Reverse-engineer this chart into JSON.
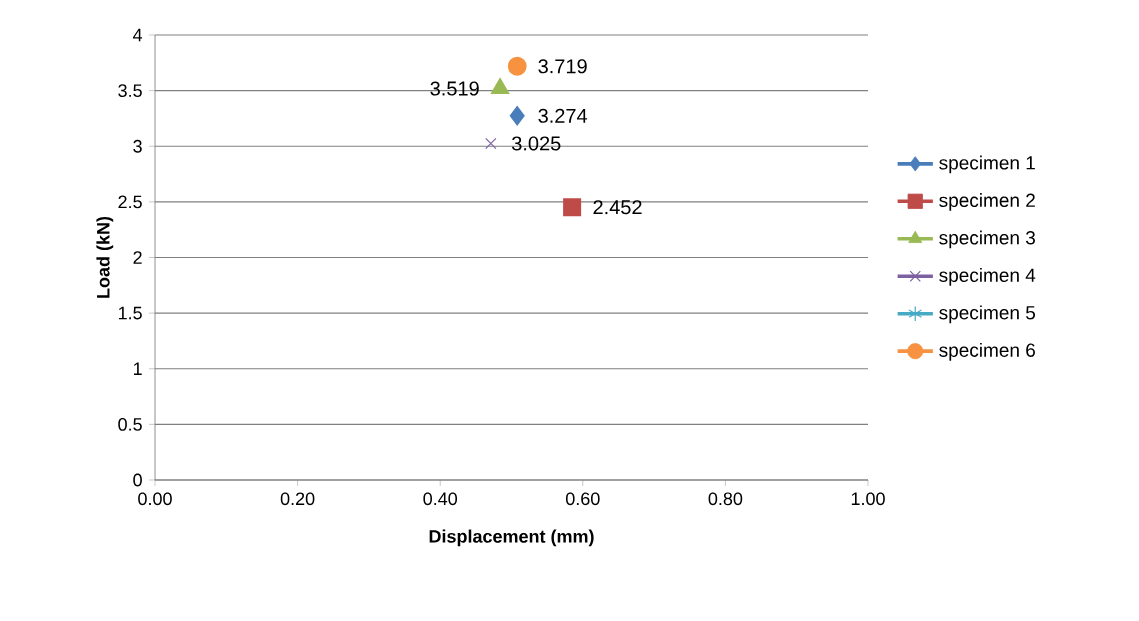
{
  "chart_data": {
    "type": "line",
    "xlabel": "Displacement (mm)",
    "ylabel": "Load (kN)",
    "series": [
      {
        "name": "specimen 1",
        "color": "#4a7ebb",
        "marker": "diamond",
        "x": [
          0.508
        ],
        "values": [
          3.274
        ]
      },
      {
        "name": "specimen 2",
        "color": "#be4b48",
        "marker": "square",
        "x": [
          0.585
        ],
        "values": [
          2.452
        ]
      },
      {
        "name": "specimen 3",
        "color": "#98b954",
        "marker": "triangle",
        "x": [
          0.484
        ],
        "values": [
          3.519
        ]
      },
      {
        "name": "specimen 4",
        "color": "#7d60a0",
        "marker": "cross",
        "x": [
          0.471
        ],
        "values": [
          3.025
        ]
      },
      {
        "name": "specimen 5",
        "color": "#46aac5",
        "marker": "star",
        "x": [
          null
        ],
        "values": [
          null
        ]
      },
      {
        "name": "specimen 6",
        "color": "#f69240",
        "marker": "circle",
        "x": [
          0.508
        ],
        "values": [
          3.719
        ]
      }
    ],
    "xlim": [
      0,
      1
    ],
    "xticks": [
      {
        "value": 0,
        "label": "0.00"
      },
      {
        "value": 0.2,
        "label": "0.20"
      },
      {
        "value": 0.4,
        "label": "0.40"
      },
      {
        "value": 0.6,
        "label": "0.60"
      },
      {
        "value": 0.8,
        "label": "0.80"
      },
      {
        "value": 1,
        "label": "1.00"
      }
    ],
    "ylim": [
      0,
      4
    ],
    "yticks": [
      0,
      0.5,
      1,
      1.5,
      2,
      2.5,
      3,
      3.5,
      4
    ],
    "grid": "y",
    "legend": "right",
    "data_labels": true
  }
}
